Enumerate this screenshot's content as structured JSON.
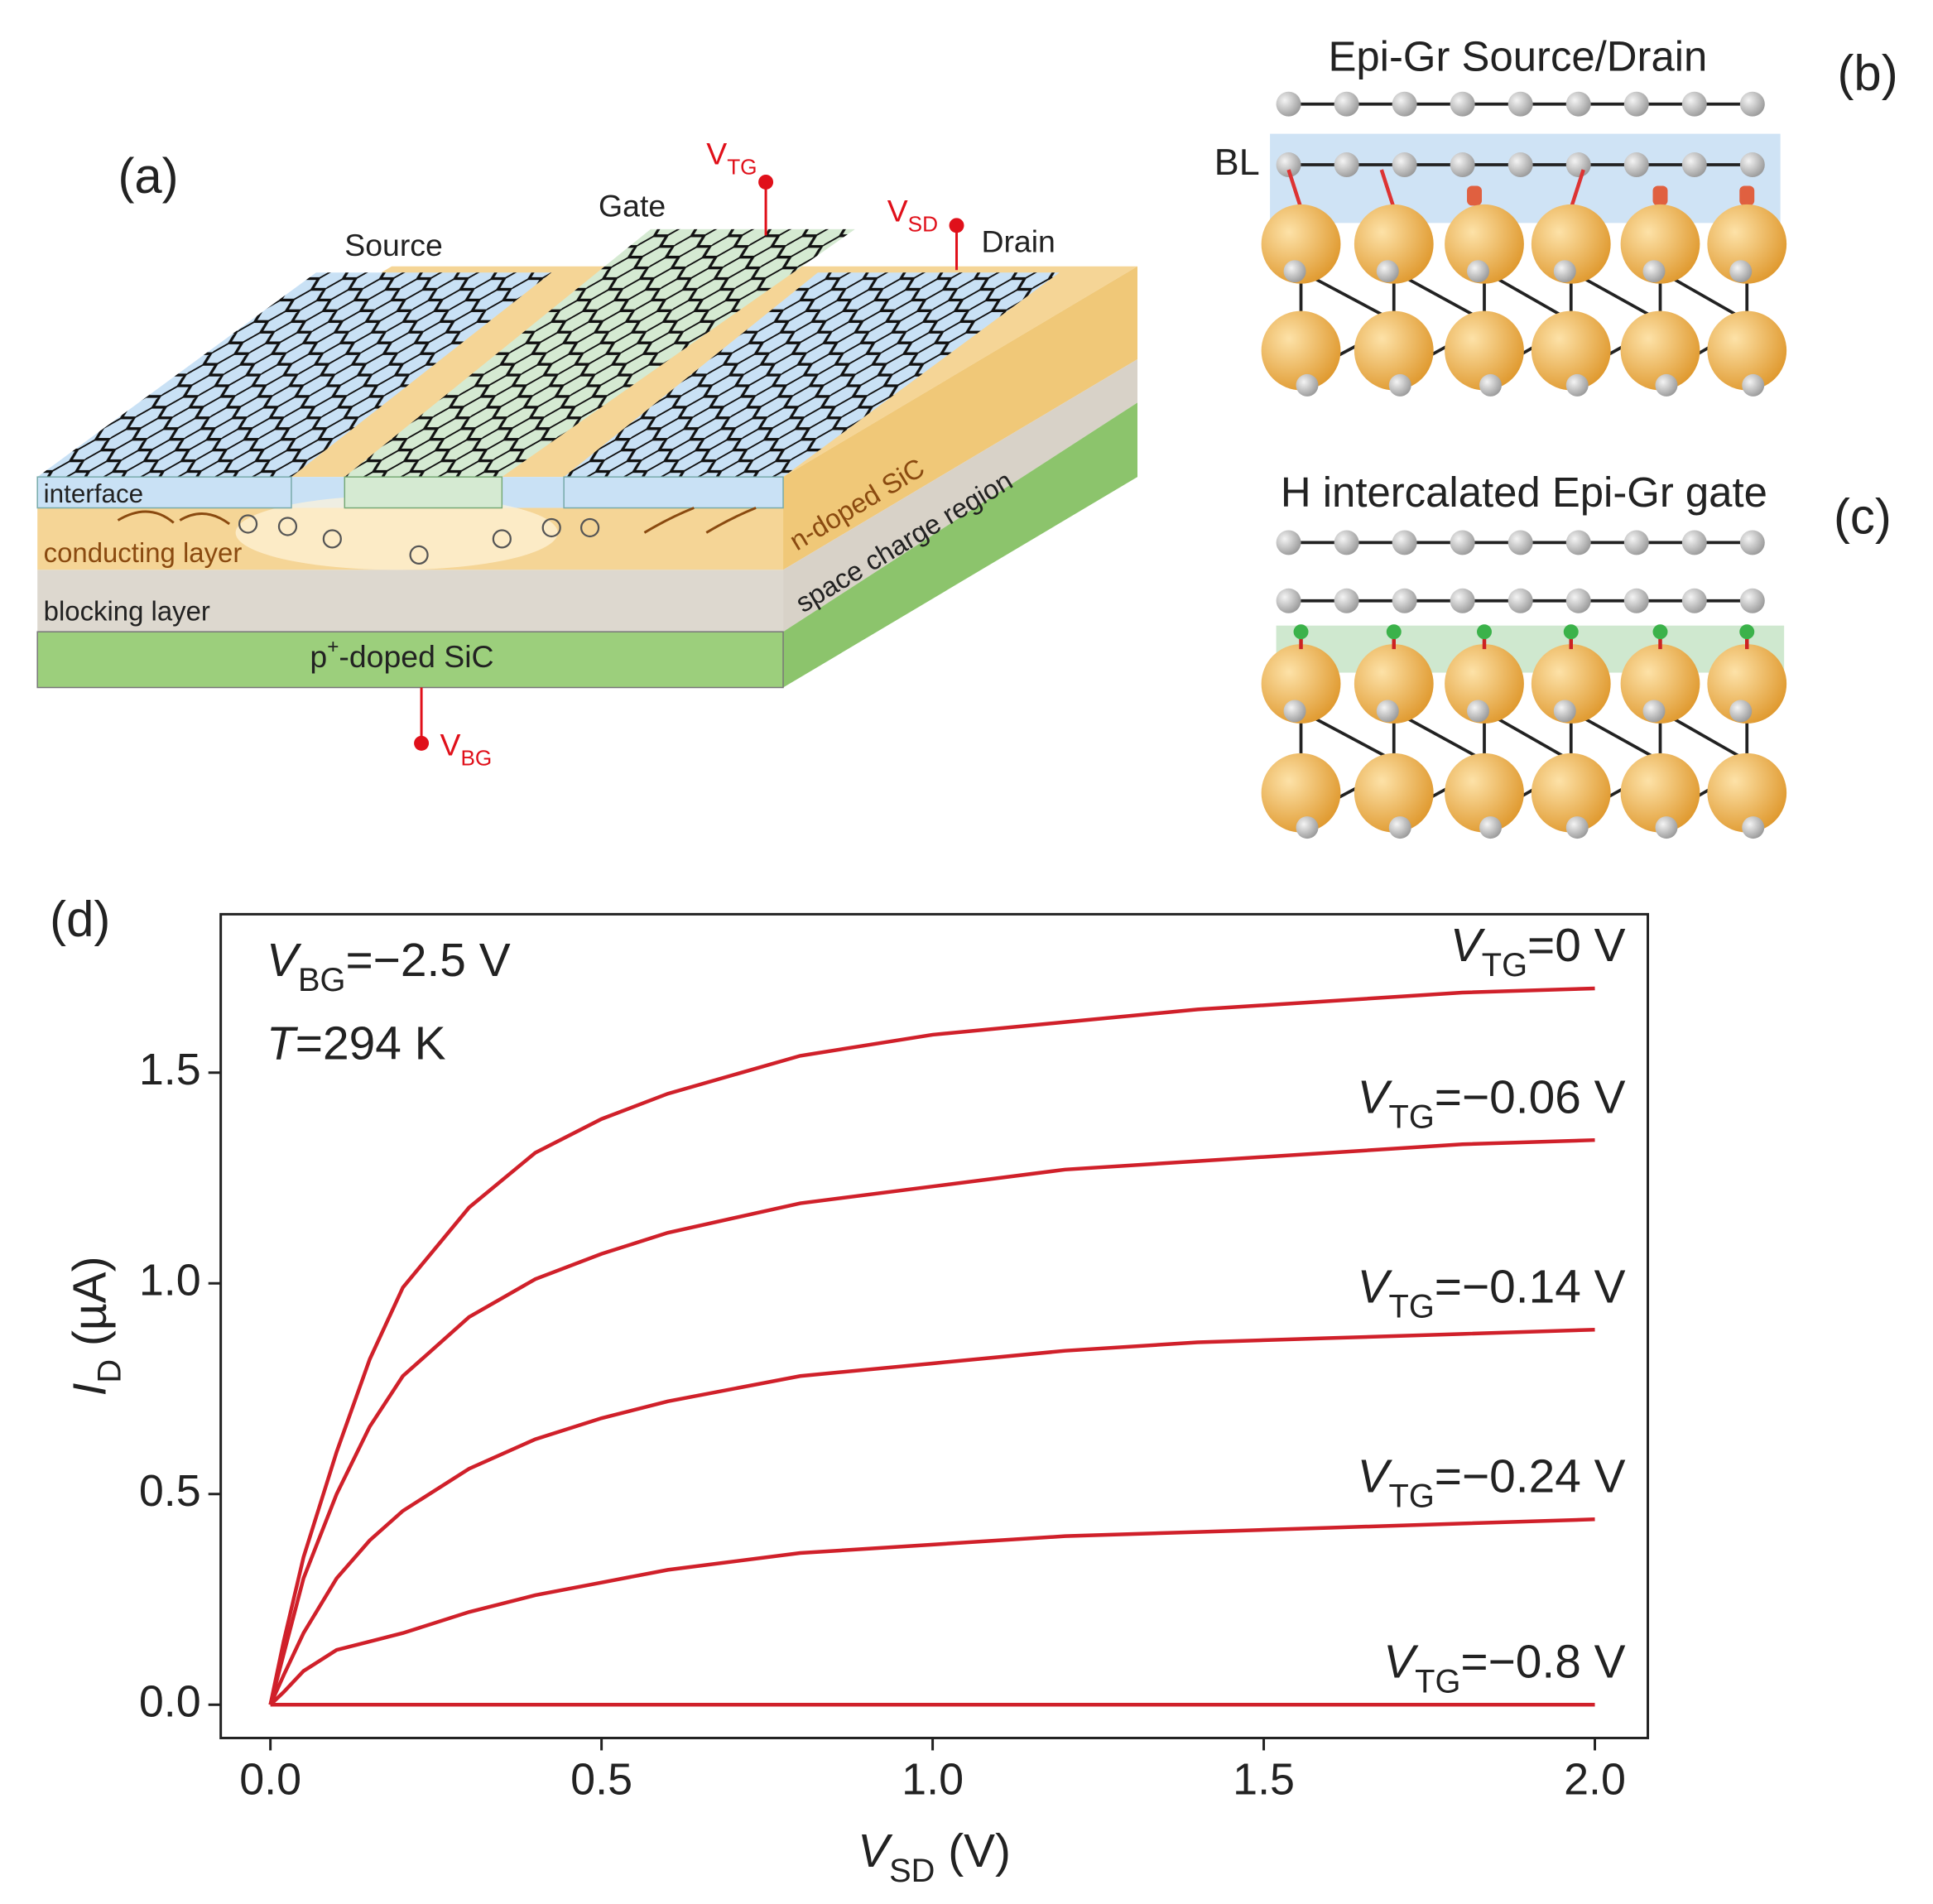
{
  "panels": {
    "a": {
      "label": "(a)",
      "source": "Source",
      "gate": "Gate",
      "drain": "Drain",
      "v_tg": "VTG",
      "v_sd": "VSD",
      "v_bg": "VBG",
      "interface": "interface",
      "conducting_layer": "conducting layer",
      "blocking_layer": "blocking layer",
      "p_doped": "p+-doped SiC",
      "n_doped": "n-doped SiC",
      "space_charge": "space charge region"
    },
    "b": {
      "label": "(b)",
      "title": "Epi-Gr Source/Drain",
      "bl": "BL"
    },
    "c": {
      "label": "(c)",
      "title": "H intercalated Epi-Gr gate"
    },
    "d": {
      "label": "(d)"
    }
  },
  "chart_data": {
    "type": "line",
    "xlabel": "VSD (V)",
    "ylabel": "ID (µA)",
    "annotations": [
      "VBG=−2.5 V",
      "T=294 K"
    ],
    "x": [
      0,
      0.02,
      0.05,
      0.1,
      0.15,
      0.2,
      0.3,
      0.4,
      0.5,
      0.6,
      0.8,
      1.0,
      1.2,
      1.4,
      1.6,
      1.8,
      2.0
    ],
    "series": [
      {
        "name": "VTG=0 V",
        "color": "#d0202a",
        "values": [
          0,
          0.15,
          0.35,
          0.6,
          0.82,
          0.99,
          1.18,
          1.31,
          1.39,
          1.45,
          1.54,
          1.59,
          1.62,
          1.65,
          1.67,
          1.69,
          1.7
        ]
      },
      {
        "name": "VTG=−0.06 V",
        "color": "#d0202a",
        "values": [
          0,
          0.12,
          0.3,
          0.5,
          0.66,
          0.78,
          0.92,
          1.01,
          1.07,
          1.12,
          1.19,
          1.23,
          1.27,
          1.29,
          1.31,
          1.33,
          1.34
        ]
      },
      {
        "name": "VTG=−0.14 V",
        "color": "#d0202a",
        "values": [
          0,
          0.07,
          0.17,
          0.3,
          0.39,
          0.46,
          0.56,
          0.63,
          0.68,
          0.72,
          0.78,
          0.81,
          0.84,
          0.86,
          0.87,
          0.88,
          0.89
        ]
      },
      {
        "name": "VTG=−0.24 V",
        "color": "#d0202a",
        "values": [
          0,
          0.03,
          0.08,
          0.13,
          0.15,
          0.17,
          0.22,
          0.26,
          0.29,
          0.32,
          0.36,
          0.38,
          0.4,
          0.41,
          0.42,
          0.43,
          0.44
        ]
      },
      {
        "name": "VTG=−0.8 V",
        "color": "#d0202a",
        "values": [
          0,
          0,
          0,
          0,
          0,
          0,
          0,
          0,
          0,
          0,
          0,
          0,
          0,
          0,
          0,
          0,
          0
        ]
      }
    ],
    "xlim": [
      -0.075,
      2.08
    ],
    "ylim": [
      -0.079,
      1.876
    ],
    "xticks": [
      {
        "value": 0,
        "label": "0.0"
      },
      0.5,
      {
        "value": 1,
        "label": "1.0"
      },
      1.5,
      {
        "value": 2,
        "label": "2.0"
      }
    ],
    "yticks": [
      {
        "value": 0,
        "label": "0.0"
      },
      0.5,
      {
        "value": 1,
        "label": "1.0"
      },
      1.5
    ]
  }
}
